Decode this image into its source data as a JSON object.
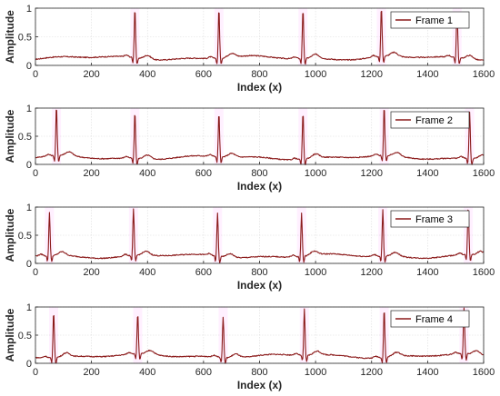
{
  "colors": {
    "signal": "#8b1a1a",
    "peak_highlight": "#ff00ff",
    "grid": "#dcdcdc",
    "axis": "#262626"
  },
  "chart_data": [
    {
      "type": "line",
      "legend": "Frame 1",
      "legend_position": "top-right",
      "xlabel": "Index (x)",
      "ylabel": "Amplitude",
      "xlim": [
        0,
        1600
      ],
      "ylim": [
        0,
        1
      ],
      "xticks": [
        0,
        200,
        400,
        600,
        800,
        1000,
        1200,
        1400,
        1600
      ],
      "yticks": [
        0,
        0.5,
        1
      ],
      "grid": true,
      "baseline": 0.13,
      "peaks": [
        355,
        655,
        955,
        1235,
        1505
      ],
      "peak_heights": [
        1.0,
        1.0,
        1.0,
        1.0,
        1.0
      ]
    },
    {
      "type": "line",
      "legend": "Frame 2",
      "legend_position": "top-right",
      "xlabel": "Index (x)",
      "ylabel": "Amplitude",
      "xlim": [
        0,
        1600
      ],
      "ylim": [
        0,
        1
      ],
      "xticks": [
        0,
        200,
        400,
        600,
        800,
        1000,
        1200,
        1400,
        1600
      ],
      "yticks": [
        0,
        0.5,
        1
      ],
      "grid": true,
      "baseline": 0.12,
      "peaks": [
        75,
        355,
        655,
        955,
        1245,
        1550
      ],
      "peak_heights": [
        1.0,
        0.95,
        0.9,
        0.95,
        1.0,
        0.95
      ]
    },
    {
      "type": "line",
      "legend": "Frame 3",
      "legend_position": "top-right",
      "xlabel": "Index (x)",
      "ylabel": "Amplitude",
      "xlim": [
        0,
        1600
      ],
      "ylim": [
        0,
        1
      ],
      "xticks": [
        0,
        200,
        400,
        600,
        800,
        1000,
        1200,
        1400,
        1600
      ],
      "yticks": [
        0,
        0.5,
        1
      ],
      "grid": true,
      "baseline": 0.13,
      "peaks": [
        50,
        350,
        650,
        950,
        1240,
        1545
      ],
      "peak_heights": [
        0.9,
        0.95,
        0.9,
        0.9,
        0.95,
        1.0
      ]
    },
    {
      "type": "line",
      "legend": "Frame 4",
      "legend_position": "top-right",
      "xlabel": "Index (x)",
      "ylabel": "Amplitude",
      "xlim": [
        0,
        1600
      ],
      "ylim": [
        0,
        1
      ],
      "xticks": [
        0,
        200,
        400,
        600,
        800,
        1000,
        1200,
        1400,
        1600
      ],
      "yticks": [
        0,
        0.5,
        1
      ],
      "grid": true,
      "baseline": 0.13,
      "peaks": [
        65,
        365,
        670,
        960,
        1245,
        1530
      ],
      "peak_heights": [
        0.95,
        0.85,
        0.85,
        0.95,
        1.0,
        0.95
      ]
    }
  ]
}
